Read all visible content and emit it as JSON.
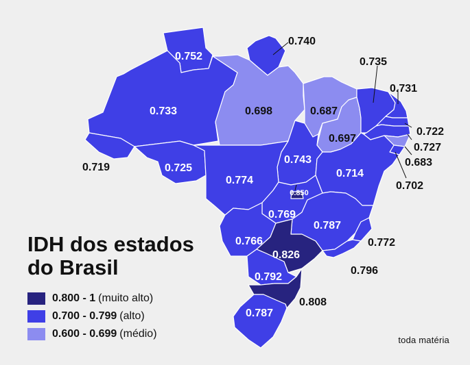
{
  "title_line1": "IDH dos estados",
  "title_line2": "do Brasil",
  "legend": [
    {
      "range": "0.800 - 1",
      "desc": "(muito alto)",
      "color": "#27237f"
    },
    {
      "range": "0.700 - 0.799",
      "desc": "(alto)",
      "color": "#3f3fe6"
    },
    {
      "range": "0.600 - 0.699",
      "desc": "(médio)",
      "color": "#8c8cf0"
    }
  ],
  "brand": "toda matéria",
  "colors": {
    "very_high": "#27237f",
    "high": "#3f3fe6",
    "medium": "#8c8cf0",
    "border": "#ffffff",
    "background": "#efefef"
  },
  "states": [
    {
      "id": "roraima",
      "value": "0.752",
      "tier": "high"
    },
    {
      "id": "amapa",
      "value": "0.740",
      "tier": "high"
    },
    {
      "id": "amazonas",
      "value": "0.733",
      "tier": "high"
    },
    {
      "id": "para",
      "value": "0.698",
      "tier": "medium"
    },
    {
      "id": "maranhao",
      "value": "0.687",
      "tier": "medium"
    },
    {
      "id": "piaui",
      "value": "0.697",
      "tier": "medium"
    },
    {
      "id": "ceara",
      "value": "0.735",
      "tier": "high"
    },
    {
      "id": "rio-grande-do-norte",
      "value": "0.731",
      "tier": "high"
    },
    {
      "id": "paraiba",
      "value": "0.722",
      "tier": "high"
    },
    {
      "id": "pernambuco",
      "value": "0.727",
      "tier": "high"
    },
    {
      "id": "alagoas",
      "value": "0.683",
      "tier": "medium"
    },
    {
      "id": "sergipe",
      "value": "0.702",
      "tier": "high"
    },
    {
      "id": "acre",
      "value": "0.719",
      "tier": "high"
    },
    {
      "id": "rondonia",
      "value": "0.725",
      "tier": "high"
    },
    {
      "id": "tocantins",
      "value": "0.743",
      "tier": "high"
    },
    {
      "id": "bahia",
      "value": "0.714",
      "tier": "high"
    },
    {
      "id": "mato-grosso",
      "value": "0.774",
      "tier": "high"
    },
    {
      "id": "distrito-federal",
      "value": "0.850",
      "tier": "very_high"
    },
    {
      "id": "goias",
      "value": "0.769",
      "tier": "high"
    },
    {
      "id": "minas-gerais",
      "value": "0.787",
      "tier": "high"
    },
    {
      "id": "mato-grosso-do-sul",
      "value": "0.766",
      "tier": "high"
    },
    {
      "id": "espirito-santo",
      "value": "0.772",
      "tier": "high"
    },
    {
      "id": "sao-paulo",
      "value": "0.826",
      "tier": "very_high"
    },
    {
      "id": "rio-de-janeiro",
      "value": "0.796",
      "tier": "high"
    },
    {
      "id": "parana",
      "value": "0.792",
      "tier": "high"
    },
    {
      "id": "santa-catarina",
      "value": "0.808",
      "tier": "very_high"
    },
    {
      "id": "rio-grande-do-sul",
      "value": "0.787",
      "tier": "high"
    }
  ]
}
